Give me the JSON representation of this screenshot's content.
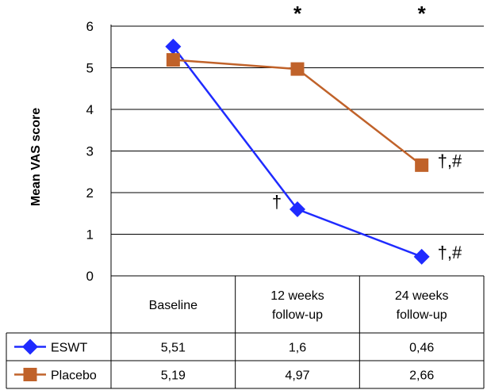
{
  "chart_data": {
    "type": "line",
    "title": "",
    "xlabel": "",
    "ylabel": "Mean VAS score",
    "ylim": [
      0,
      6
    ],
    "yticks": [
      "0",
      "1",
      "2",
      "3",
      "4",
      "5",
      "6"
    ],
    "grid": true,
    "categories": [
      "Baseline",
      "12 weeks follow-up",
      "24 weeks follow-up"
    ],
    "significance_marks": [
      "",
      "*",
      "*"
    ],
    "series": [
      {
        "name": "ESWT",
        "values": [
          5.51,
          1.6,
          0.46
        ],
        "value_labels": [
          "5,51",
          "1,6",
          "0,46"
        ],
        "point_annotations": [
          "",
          "†",
          "†,#"
        ],
        "color": "#1f2bff",
        "marker": "diamond"
      },
      {
        "name": "Placebo",
        "values": [
          5.19,
          4.97,
          2.66
        ],
        "value_labels": [
          "5,19",
          "4,97",
          "2,66"
        ],
        "point_annotations": [
          "",
          "",
          "†,#"
        ],
        "color": "#c0622a",
        "marker": "square"
      }
    ]
  }
}
